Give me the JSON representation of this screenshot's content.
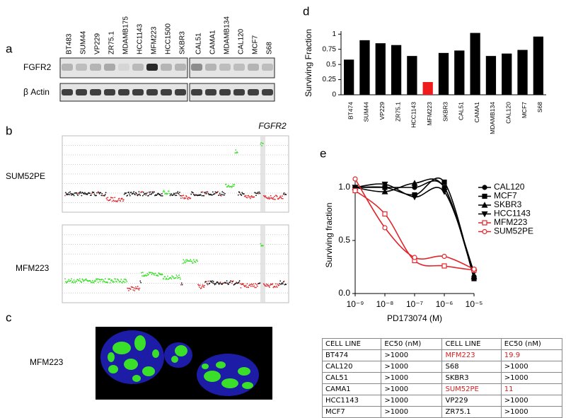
{
  "panel_labels": [
    "a",
    "b",
    "c",
    "d",
    "e"
  ],
  "blot": {
    "cell_lines_left": [
      "BT483",
      "SUM44",
      "VP229",
      "ZR75.1",
      "MDAMB175",
      "HCC1143",
      "MFM223",
      "HCC1500",
      "SKBR3"
    ],
    "cell_lines_right": [
      "CAL51",
      "CAMA1",
      "MDAMB134",
      "CAL120",
      "MCF7",
      "S68"
    ],
    "rows": [
      "FGFR2",
      "β Actin"
    ]
  },
  "copy_number": {
    "gene": "FGFR2",
    "samples": [
      "SUM52PE",
      "MFM223"
    ]
  },
  "microscopy": {
    "sample": "MFM223"
  },
  "chart_data": [
    {
      "type": "bar",
      "ylabel": "Surviving Fraction",
      "categories": [
        "BT474",
        "SUM44",
        "VP229",
        "ZR75.1",
        "HCC1143",
        "MFM223",
        "SKBR3",
        "CAL51",
        "CAMA1",
        "MDAMB134",
        "CAL120",
        "MCF7",
        "S68"
      ],
      "values": [
        0.58,
        0.9,
        0.85,
        0.82,
        0.64,
        0.21,
        0.69,
        0.73,
        1.02,
        0.64,
        0.68,
        0.74,
        0.96
      ],
      "colors": [
        "#000000",
        "#000000",
        "#000000",
        "#000000",
        "#000000",
        "#ee1c1c",
        "#000000",
        "#000000",
        "#000000",
        "#000000",
        "#000000",
        "#000000",
        "#000000"
      ],
      "ylim": [
        0,
        1.05
      ],
      "yticks": [
        0,
        0.25,
        0.5,
        0.75,
        1
      ]
    },
    {
      "type": "line",
      "xlabel": "PD173074 (M)",
      "ylabel": "Surviving fraction",
      "x": [
        1e-09,
        1e-08,
        1e-07,
        1e-06,
        1e-05
      ],
      "xscale": "log",
      "xlim": [
        1e-09,
        1e-05
      ],
      "xticks": [
        {
          "value": 1e-09,
          "label": "10⁻⁹"
        },
        {
          "value": 1e-08,
          "label": "10⁻⁸"
        },
        {
          "value": 1e-07,
          "label": "10⁻⁷"
        },
        {
          "value": 1e-06,
          "label": "10⁻⁶"
        },
        {
          "value": 1e-05,
          "label": "10⁻⁵"
        }
      ],
      "ylim": [
        0,
        1.1
      ],
      "yticks": [
        {
          "value": 0,
          "label": "0.0"
        },
        0.5,
        {
          "value": 1,
          "label": "1.0"
        }
      ],
      "legend": "right",
      "series": [
        {
          "name": "CAL120",
          "color": "#000000",
          "marker": "circle",
          "filled": true,
          "values": [
            1.0,
            1.0,
            1.0,
            1.0,
            0.16
          ]
        },
        {
          "name": "MCF7",
          "color": "#000000",
          "marker": "square",
          "filled": true,
          "values": [
            1.0,
            1.0,
            0.93,
            1.05,
            0.14
          ]
        },
        {
          "name": "SKBR3",
          "color": "#000000",
          "marker": "triangle",
          "filled": true,
          "values": [
            1.0,
            0.96,
            1.04,
            1.0,
            0.16
          ]
        },
        {
          "name": "HCC1143",
          "color": "#000000",
          "marker": "triangle-down",
          "filled": true,
          "values": [
            1.0,
            1.03,
            0.91,
            0.96,
            0.2
          ]
        },
        {
          "name": "MFM223",
          "color": "#e0262b",
          "marker": "square",
          "filled": false,
          "values": [
            0.97,
            0.75,
            0.31,
            0.26,
            0.22
          ]
        },
        {
          "name": "SUM52PE",
          "color": "#e0262b",
          "marker": "circle",
          "filled": false,
          "values": [
            1.08,
            0.62,
            0.34,
            0.35,
            0.23
          ]
        }
      ]
    }
  ],
  "table": {
    "header": [
      "CELL LINE",
      "EC50 (nM)",
      "CELL LINE",
      "EC50 (nM)"
    ],
    "rows": [
      [
        "BT474",
        ">1000",
        "MFM223",
        "19.9"
      ],
      [
        "CAL120",
        ">1000",
        "S68",
        ">1000"
      ],
      [
        "CAL51",
        ">1000",
        "SKBR3",
        ">1000"
      ],
      [
        "CAMA1",
        ">1000",
        "SUM52PE",
        "11"
      ],
      [
        "HCC1143",
        ">1000",
        "VP229",
        ">1000"
      ],
      [
        "MCF7",
        ">1000",
        "ZR75.1",
        ">1000"
      ]
    ]
  }
}
